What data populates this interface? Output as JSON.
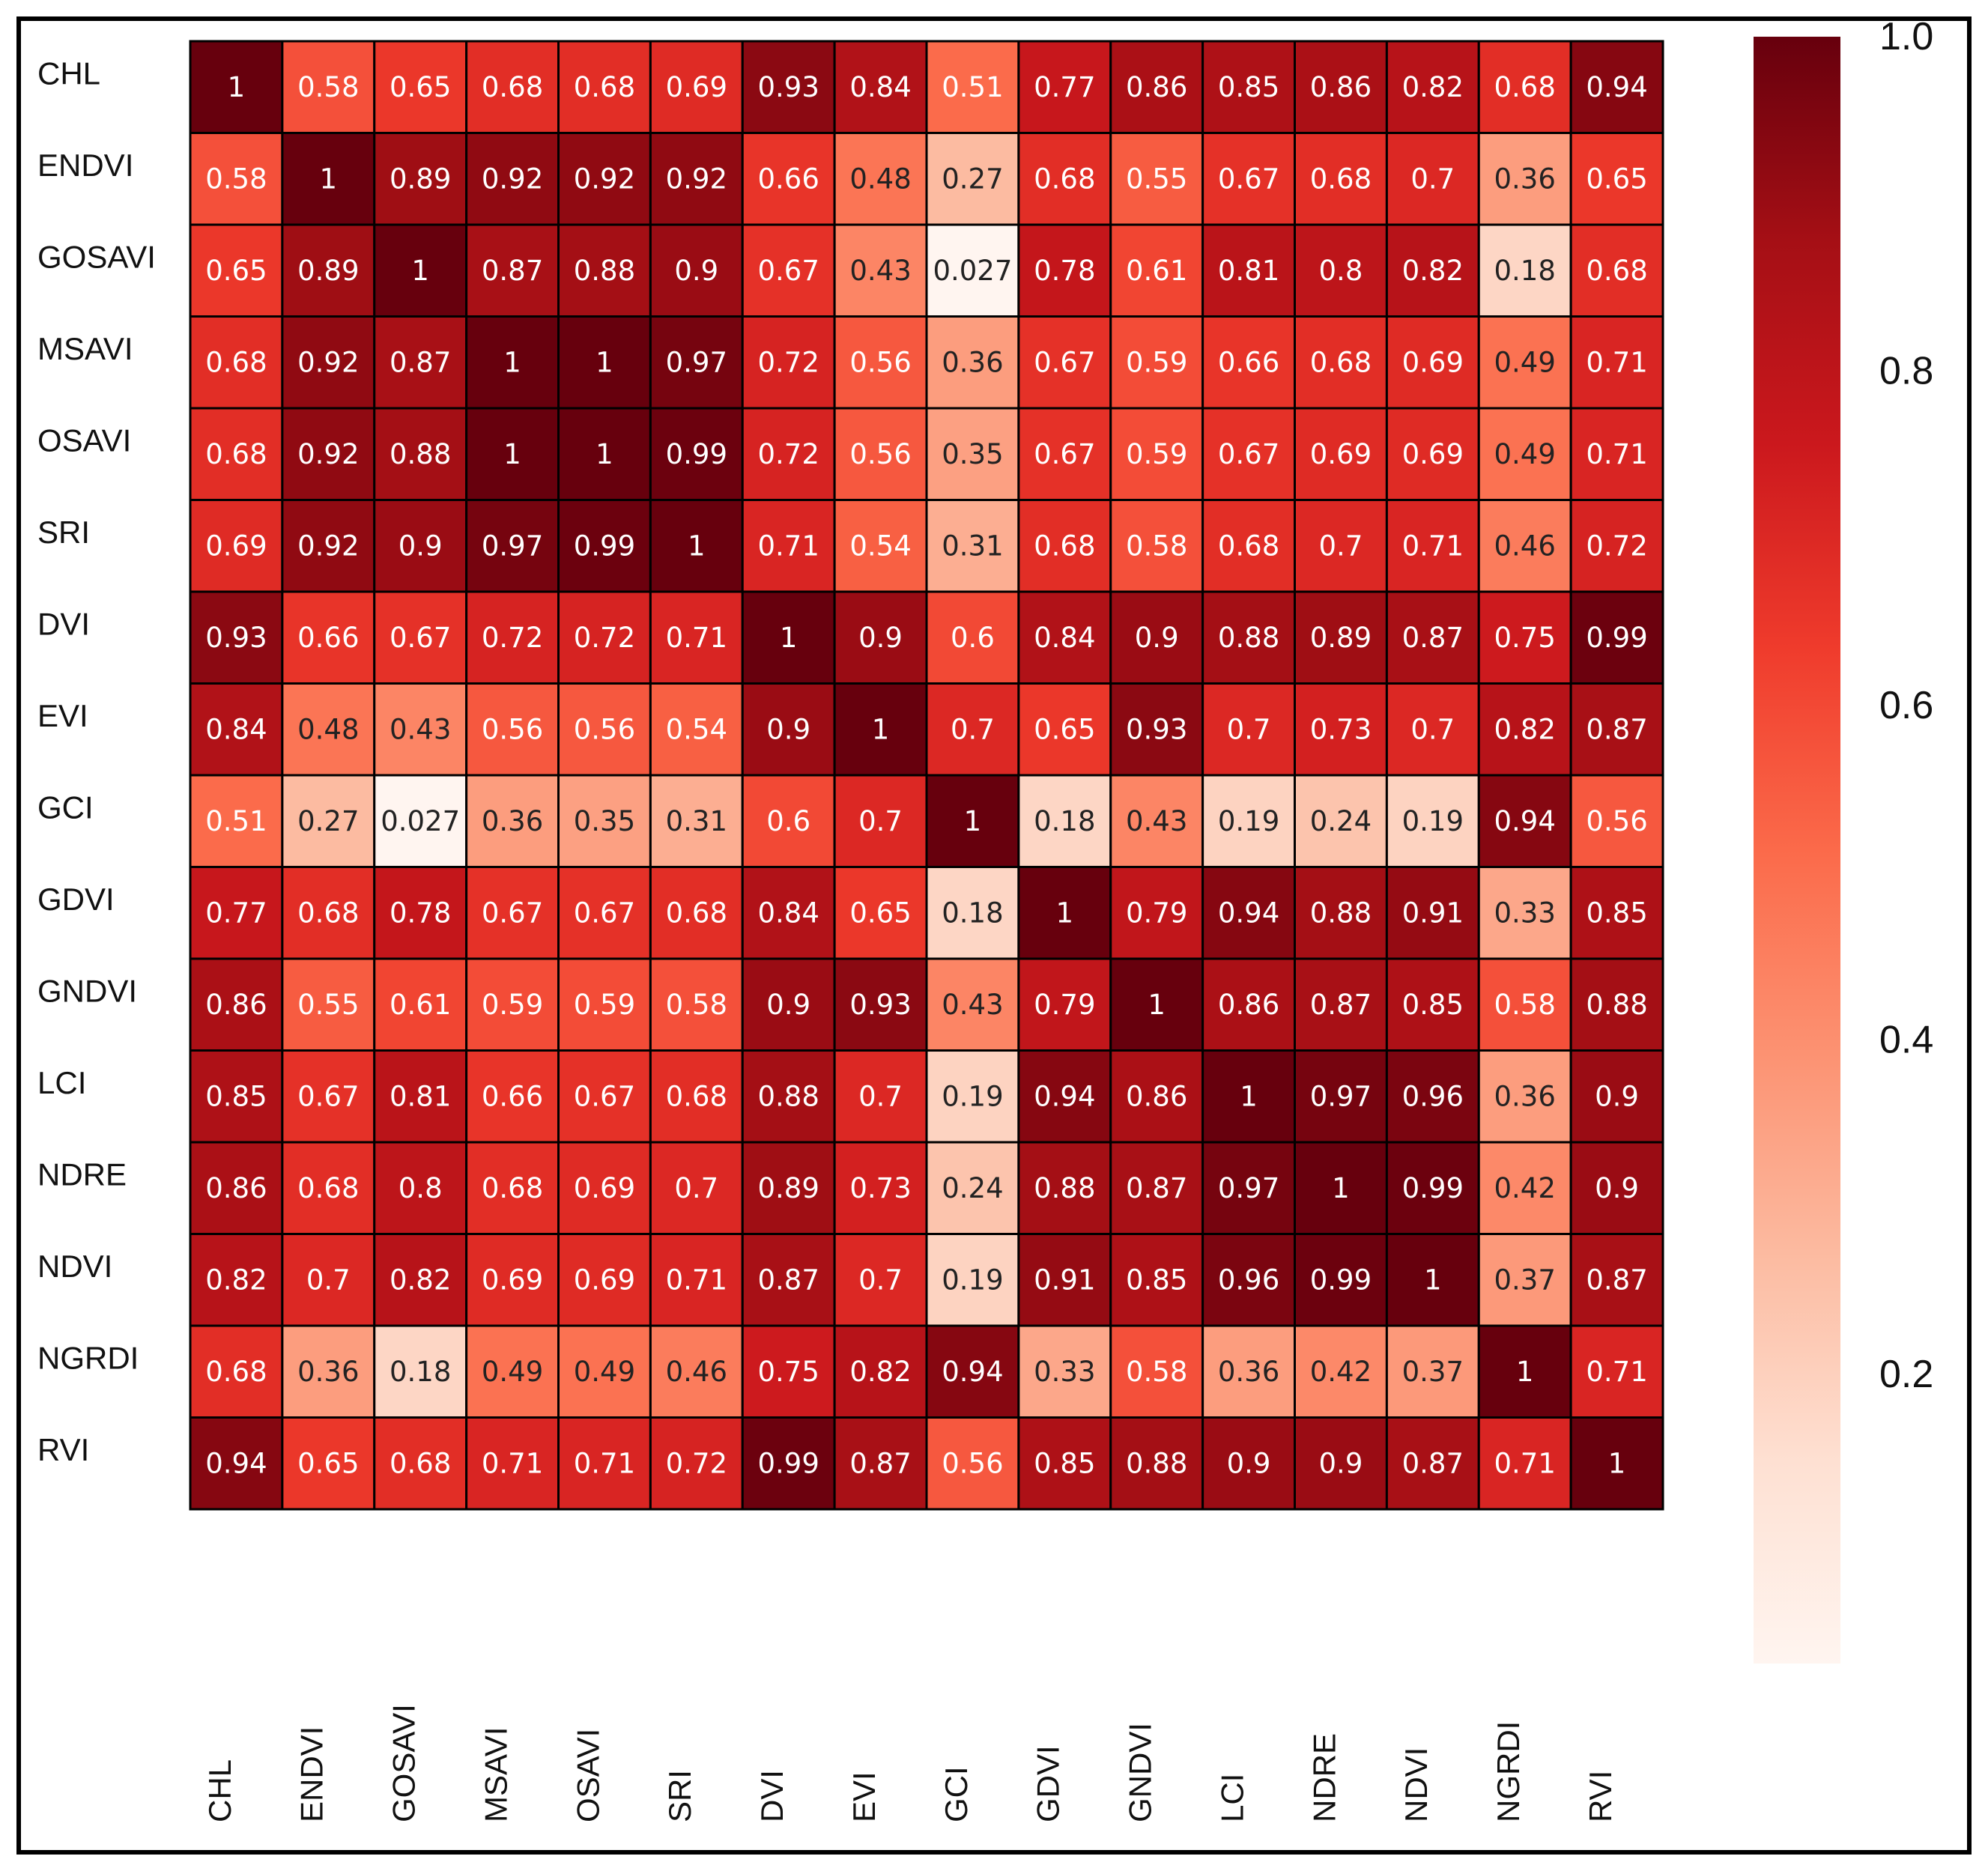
{
  "chart_data": {
    "type": "heatmap",
    "title": "",
    "xlabel": "",
    "ylabel": "",
    "row_labels": [
      "CHL",
      "ENDVI",
      "GOSAVI",
      "MSAVI",
      "OSAVI",
      "SRI",
      "DVI",
      "EVI",
      "GCI",
      "GDVI",
      "GNDVI",
      "LCI",
      "NDRE",
      "NDVI",
      "NGRDI",
      "RVI"
    ],
    "col_labels": [
      "CHL",
      "ENDVI",
      "GOSAVI",
      "MSAVI",
      "OSAVI",
      "SRI",
      "DVI",
      "EVI",
      "GCI",
      "GDVI",
      "GNDVI",
      "LCI",
      "NDRE",
      "NDVI",
      "NGRDI",
      "RVI"
    ],
    "cell_labels": [
      [
        "1",
        "0.58",
        "0.65",
        "0.68",
        "0.68",
        "0.69",
        "0.93",
        "0.84",
        "0.51",
        "0.77",
        "0.86",
        "0.85",
        "0.86",
        "0.82",
        "0.68",
        "0.94"
      ],
      [
        "0.58",
        "1",
        "0.89",
        "0.92",
        "0.92",
        "0.92",
        "0.66",
        "0.48",
        "0.27",
        "0.68",
        "0.55",
        "0.67",
        "0.68",
        "0.7",
        "0.36",
        "0.65"
      ],
      [
        "0.65",
        "0.89",
        "1",
        "0.87",
        "0.88",
        "0.9",
        "0.67",
        "0.43",
        "0.027",
        "0.78",
        "0.61",
        "0.81",
        "0.8",
        "0.82",
        "0.18",
        "0.68"
      ],
      [
        "0.68",
        "0.92",
        "0.87",
        "1",
        "1",
        "0.97",
        "0.72",
        "0.56",
        "0.36",
        "0.67",
        "0.59",
        "0.66",
        "0.68",
        "0.69",
        "0.49",
        "0.71"
      ],
      [
        "0.68",
        "0.92",
        "0.88",
        "1",
        "1",
        "0.99",
        "0.72",
        "0.56",
        "0.35",
        "0.67",
        "0.59",
        "0.67",
        "0.69",
        "0.69",
        "0.49",
        "0.71"
      ],
      [
        "0.69",
        "0.92",
        "0.9",
        "0.97",
        "0.99",
        "1",
        "0.71",
        "0.54",
        "0.31",
        "0.68",
        "0.58",
        "0.68",
        "0.7",
        "0.71",
        "0.46",
        "0.72"
      ],
      [
        "0.93",
        "0.66",
        "0.67",
        "0.72",
        "0.72",
        "0.71",
        "1",
        "0.9",
        "0.6",
        "0.84",
        "0.9",
        "0.88",
        "0.89",
        "0.87",
        "0.75",
        "0.99"
      ],
      [
        "0.84",
        "0.48",
        "0.43",
        "0.56",
        "0.56",
        "0.54",
        "0.9",
        "1",
        "0.7",
        "0.65",
        "0.93",
        "0.7",
        "0.73",
        "0.7",
        "0.82",
        "0.87"
      ],
      [
        "0.51",
        "0.27",
        "0.027",
        "0.36",
        "0.35",
        "0.31",
        "0.6",
        "0.7",
        "1",
        "0.18",
        "0.43",
        "0.19",
        "0.24",
        "0.19",
        "0.94",
        "0.56"
      ],
      [
        "0.77",
        "0.68",
        "0.78",
        "0.67",
        "0.67",
        "0.68",
        "0.84",
        "0.65",
        "0.18",
        "1",
        "0.79",
        "0.94",
        "0.88",
        "0.91",
        "0.33",
        "0.85"
      ],
      [
        "0.86",
        "0.55",
        "0.61",
        "0.59",
        "0.59",
        "0.58",
        "0.9",
        "0.93",
        "0.43",
        "0.79",
        "1",
        "0.86",
        "0.87",
        "0.85",
        "0.58",
        "0.88"
      ],
      [
        "0.85",
        "0.67",
        "0.81",
        "0.66",
        "0.67",
        "0.68",
        "0.88",
        "0.7",
        "0.19",
        "0.94",
        "0.86",
        "1",
        "0.97",
        "0.96",
        "0.36",
        "0.9"
      ],
      [
        "0.86",
        "0.68",
        "0.8",
        "0.68",
        "0.69",
        "0.7",
        "0.89",
        "0.73",
        "0.24",
        "0.88",
        "0.87",
        "0.97",
        "1",
        "0.99",
        "0.42",
        "0.9"
      ],
      [
        "0.82",
        "0.7",
        "0.82",
        "0.69",
        "0.69",
        "0.71",
        "0.87",
        "0.7",
        "0.19",
        "0.91",
        "0.85",
        "0.96",
        "0.99",
        "1",
        "0.37",
        "0.87"
      ],
      [
        "0.68",
        "0.36",
        "0.18",
        "0.49",
        "0.49",
        "0.46",
        "0.75",
        "0.82",
        "0.94",
        "0.33",
        "0.58",
        "0.36",
        "0.42",
        "0.37",
        "1",
        "0.71"
      ],
      [
        "0.94",
        "0.65",
        "0.68",
        "0.71",
        "0.71",
        "0.72",
        "0.99",
        "0.87",
        "0.56",
        "0.85",
        "0.88",
        "0.9",
        "0.9",
        "0.87",
        "0.71",
        "1"
      ]
    ],
    "colorbar": {
      "range": [
        0.027,
        1.0
      ],
      "ticks": [
        0.2,
        0.4,
        0.6,
        0.8,
        1.0
      ],
      "tick_labels": [
        "0.2",
        "0.4",
        "0.6",
        "0.8",
        "1.0"
      ],
      "colormap": "Reds"
    },
    "colormap_stops": [
      "#fff5f0",
      "#fee0d2",
      "#fcbba1",
      "#fc9272",
      "#fb6a4a",
      "#ef3b2c",
      "#cb181d",
      "#a50f15",
      "#67000d"
    ]
  }
}
